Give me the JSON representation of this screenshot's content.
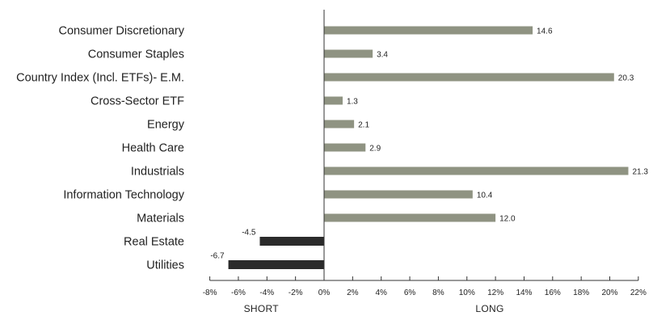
{
  "chart_data": {
    "type": "bar",
    "orientation": "horizontal",
    "categories": [
      "Consumer Discretionary",
      "Consumer Staples",
      "Country Index (Incl. ETFs)- E.M.",
      "Cross-Sector ETF",
      "Energy",
      "Health Care",
      "Industrials",
      "Information Technology",
      "Materials",
      "Real Estate",
      "Utilities"
    ],
    "values": [
      14.6,
      3.4,
      20.3,
      1.3,
      2.1,
      2.9,
      21.3,
      10.4,
      12.0,
      -4.5,
      -6.7
    ],
    "value_labels": [
      "14.6",
      "3.4",
      "20.3",
      "1.3",
      "2.1",
      "2.9",
      "21.3",
      "10.4",
      "12.0",
      "-4.5",
      "-6.7"
    ],
    "xlim": [
      -8,
      22
    ],
    "x_ticks": [
      -8,
      -6,
      -4,
      -2,
      0,
      2,
      4,
      6,
      8,
      10,
      12,
      14,
      16,
      18,
      20,
      22
    ],
    "x_tick_labels": [
      "-8%",
      "-6%",
      "-4%",
      "-2%",
      "0%",
      "2%",
      "4%",
      "6%",
      "8%",
      "10%",
      "12%",
      "14%",
      "16%",
      "18%",
      "20%",
      "22%"
    ],
    "short_label": "SHORT",
    "long_label": "LONG",
    "colors": {
      "long": "#8f9382",
      "short": "#2b2b2b",
      "axis": "#333333"
    },
    "grid": false
  }
}
